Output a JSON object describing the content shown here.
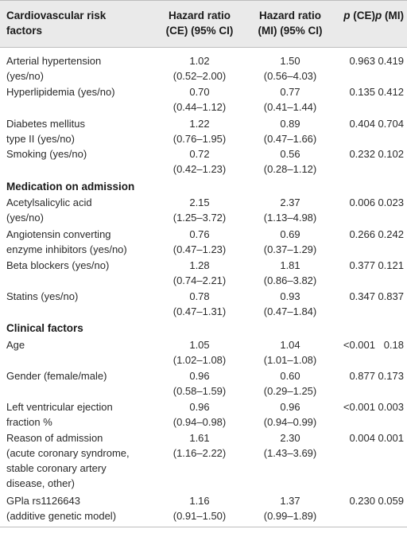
{
  "header": {
    "col0_line1": "Cardiovascular risk",
    "col0_line2": "factors",
    "col1_line1": "Hazard ratio",
    "col1_line2": "(CE) (95% CI)",
    "col2_line1": "Hazard ratio",
    "col2_line2": "(MI) (95% CI)",
    "col3_p": "p",
    "col3_rest": " (CE)",
    "col4_p": "p",
    "col4_rest": " (MI)"
  },
  "rows": [
    {
      "l1": "Arterial hypertension",
      "l2": "(yes/no)",
      "l3": "",
      "hr_ce": "1.02",
      "ci_ce": "(0.52–2.00)",
      "hr_mi": "1.50",
      "ci_mi": "(0.56–4.03)",
      "p_ce": "0.963",
      "p_mi": "0.419"
    },
    {
      "l1": "Hyperlipidemia (yes/no)",
      "l2": "",
      "l3": "",
      "hr_ce": "0.70",
      "ci_ce": "(0.44–1.12)",
      "hr_mi": "0.77",
      "ci_mi": "(0.41–1.44)",
      "p_ce": "0.135",
      "p_mi": "0.412"
    },
    {
      "l1": "Diabetes mellitus",
      "l2": "type II (yes/no)",
      "l3": "",
      "hr_ce": "1.22",
      "ci_ce": "(0.76–1.95)",
      "hr_mi": "0.89",
      "ci_mi": "(0.47–1.66)",
      "p_ce": "0.404",
      "p_mi": "0.704"
    },
    {
      "l1": "Smoking (yes/no)",
      "l2": "",
      "l3": "",
      "hr_ce": "0.72",
      "ci_ce": "(0.42–1.23)",
      "hr_mi": "0.56",
      "ci_mi": "(0.28–1.12)",
      "p_ce": "0.232",
      "p_mi": "0.102"
    }
  ],
  "section_medication": "Medication on admission",
  "rows_med": [
    {
      "l1": "Acetylsalicylic acid",
      "l2": "(yes/no)",
      "l3": "",
      "hr_ce": "2.15",
      "ci_ce": "(1.25–3.72)",
      "hr_mi": "2.37",
      "ci_mi": "(1.13–4.98)",
      "p_ce": "0.006",
      "p_mi": "0.023"
    },
    {
      "l1": "Angiotensin converting",
      "l2": "enzyme inhibitors (yes/no)",
      "l3": "",
      "hr_ce": "0.76",
      "ci_ce": "(0.47–1.23)",
      "hr_mi": "0.69",
      "ci_mi": "(0.37–1.29)",
      "p_ce": "0.266",
      "p_mi": "0.242"
    },
    {
      "l1": "Beta blockers (yes/no)",
      "l2": "",
      "l3": "",
      "hr_ce": "1.28",
      "ci_ce": "(0.74–2.21)",
      "hr_mi": "1.81",
      "ci_mi": "(0.86–3.82)",
      "p_ce": "0.377",
      "p_mi": "0.121"
    },
    {
      "l1": "Statins (yes/no)",
      "l2": "",
      "l3": "",
      "hr_ce": "0.78",
      "ci_ce": "(0.47–1.31)",
      "hr_mi": "0.93",
      "ci_mi": "(0.47–1.84)",
      "p_ce": "0.347",
      "p_mi": "0.837"
    }
  ],
  "section_clinical": "Clinical factors",
  "rows_clin": [
    {
      "l1": "Age",
      "l2": "",
      "l3": "",
      "l4": "",
      "hr_ce": "1.05",
      "ci_ce": "(1.02–1.08)",
      "hr_mi": "1.04",
      "ci_mi": "(1.01–1.08)",
      "p_ce": "<0.001",
      "p_mi": "0.18"
    },
    {
      "l1": "Gender (female/male)",
      "l2": "",
      "l3": "",
      "l4": "",
      "hr_ce": "0.96",
      "ci_ce": "(0.58–1.59)",
      "hr_mi": "0.60",
      "ci_mi": "(0.29–1.25)",
      "p_ce": "0.877",
      "p_mi": "0.173"
    },
    {
      "l1": "Left ventricular ejection",
      "l2": "fraction %",
      "l3": "",
      "l4": "",
      "hr_ce": "0.96",
      "ci_ce": "(0.94–0.98)",
      "hr_mi": "0.96",
      "ci_mi": "(0.94–0.99)",
      "p_ce": "<0.001",
      "p_mi": "0.003"
    },
    {
      "l1": "Reason of admission",
      "l2": "(acute coronary syndrome,",
      "l3": "stable coronary artery",
      "l4": "disease, other)",
      "hr_ce": "1.61",
      "ci_ce": "(1.16–2.22)",
      "hr_mi": "2.30",
      "ci_mi": "(1.43–3.69)",
      "p_ce": "0.004",
      "p_mi": "0.001"
    },
    {
      "l1": "GPla rs1126643",
      "l2": "(additive genetic model)",
      "l3": "",
      "l4": "",
      "hr_ce": "1.16",
      "ci_ce": "(0.91–1.50)",
      "hr_mi": "1.37",
      "ci_mi": "(0.99–1.89)",
      "p_ce": "0.230",
      "p_mi": "0.059"
    }
  ]
}
